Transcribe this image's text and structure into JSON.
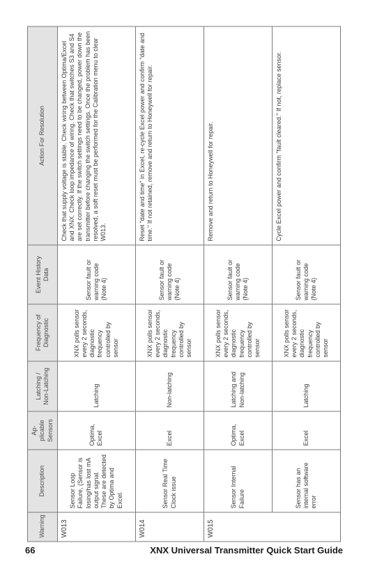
{
  "page_number": "66",
  "footer_title": "XNX Universal Transmitter Quick Start Guide",
  "headers": {
    "warning": "Warning",
    "description": "Description",
    "sensors": "Ap- plicable Sensors",
    "latching": "Latching / Non-Latching",
    "frequency": "Frequency of Diagnostic",
    "event": "Event History Data",
    "action": "Action For Resolution"
  },
  "rows": [
    {
      "code": "W013",
      "description": "Sensor Loop Failure, (Sensor is losing/has lost mA output signal. These are detected by Optima and Excel.",
      "sensors": "Optima, Excel",
      "latching": "Latching",
      "frequency": "XNX polls sensor every 2 seconds, diagnostic frequency controlled by sensor",
      "event": "Sensor fault or warning code (Note 4)",
      "action": "Check that supply voltage is stable. Check wiring between Optima/Excel and XNX. Check loop impedance of wiring. Check that switches S3 and S4 are set correctly. If the switch settings need to be changed, power down the transmitter before changing the switch settings. Once the problem has been resolved, a soft reset must be performed for the Calibration menu to clear W013."
    },
    {
      "code": "W014",
      "description": "Sensor Real Time Clock issue",
      "sensors": "Excel",
      "latching": "Non-latching",
      "frequency": "XNX polls sensor every 2 seconds, diagnostic frequency controlled by sensor",
      "event": "Sensor fault or warning code (Note 4)",
      "action": "Reset \"date and time\" in Excel, re-cycle Excel power and confirm \"date and time.\" If not retained, remove and return to Honeywell for repair."
    },
    {
      "code": "W015",
      "r1": {
        "description": "Sensor Internal Failure",
        "sensors": "Optima, Excel",
        "latching": "Latching and Non-latching",
        "frequency": "XNX polls sensor every 2 seconds, diagnostic frequency controlled by sensor",
        "event": "Sensor fault or warning code (Note 4)",
        "action": "Remove and return to Honeywell for repair."
      },
      "r2": {
        "description": "Sensor has an internal software error",
        "sensors": "Excel",
        "latching": "Latching",
        "frequency": "XNX polls sensor every 2 seconds, diagnostic frequency controlled by sensor",
        "event": "Sensor fault or warning code (Note 4)",
        "action": "Cycle Excel power and confirm \"fault cleared.\" If not, replace sensor."
      }
    }
  ]
}
